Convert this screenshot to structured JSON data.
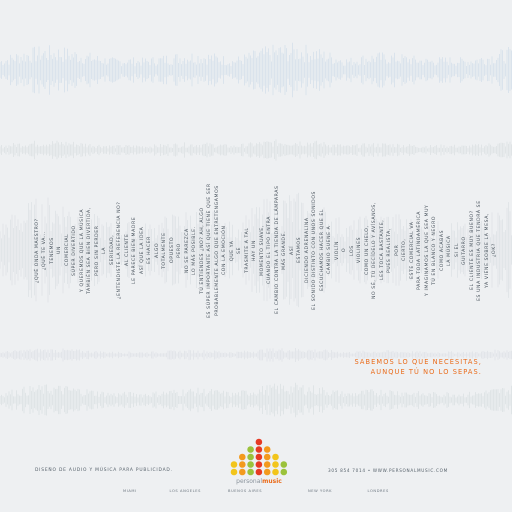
{
  "colors": {
    "background": "#eef0f2",
    "wave_blue": "#c3d3e4",
    "text_dark": "#48525c",
    "accent_orange": "#ea6b1a",
    "logo_red": "#e63a24",
    "logo_orange": "#f39a1d",
    "logo_yellow": "#f2c51c",
    "logo_green": "#9bc23b"
  },
  "lyric_lines": [
    "¿Qué onda maestro?",
    "¿Qué te va...",
    "Tenemos",
    "un",
    "comercial",
    "súper divertido",
    "y queremos que la música",
    "también sea bien divertida,",
    "pero sin perder",
    "la",
    "seriedad,",
    "¿Entendiste la referencia no?",
    "al cliente",
    "le parece bien madre",
    "así que la idea",
    "es hacer",
    "algo",
    "totalmente",
    "opuesto",
    "pero",
    "no se parezca",
    "lo más posible.",
    "Tú entiendes ¿no? Ah, algo",
    "es súper importante así que tiene que ser",
    "probablemente algo que entretengamos",
    "con la emoción",
    "que ya",
    "se",
    "trasmite a tal",
    "hay un",
    "momento suave,",
    "cuando el tipo entra",
    "el cambio contra la tienda de lámparas",
    "más grande.",
    "así",
    "estamos",
    "diciendo adrenalina",
    "el sonido distinto con unos sonidos",
    "escuchamos hacer que el",
    "cambio suene a",
    "violín",
    "o",
    "los",
    "violines",
    "como un chelo,",
    "no sé, tú decídelo y avísanos,",
    "les toca bastante,",
    "pues realista,",
    "por",
    "cierto,",
    "este comercial va",
    "para toda Latinoamérica",
    "y imaginamos la que sea muy",
    "tú en blanco y negro",
    "como acabas",
    "la música",
    "si el",
    "guitarro",
    "el cliente es muy bueno?",
    "es una industria que tendrá se",
    "ya viene sobre la mesa,",
    "¿OK?"
  ],
  "tagline": {
    "line1": "Sabemos lo que necesitas,",
    "line2": "aunque tú no lo sepas."
  },
  "footer": {
    "description": "Diseño de audio y música para publicidad.",
    "contact": "305 854 7014 • www.personalmusic.com",
    "cities": [
      "Miami",
      "Los Angeles",
      "Buenos Aires",
      "New York",
      "Londres"
    ]
  },
  "brand": {
    "word1": "personal",
    "word2": "music"
  }
}
